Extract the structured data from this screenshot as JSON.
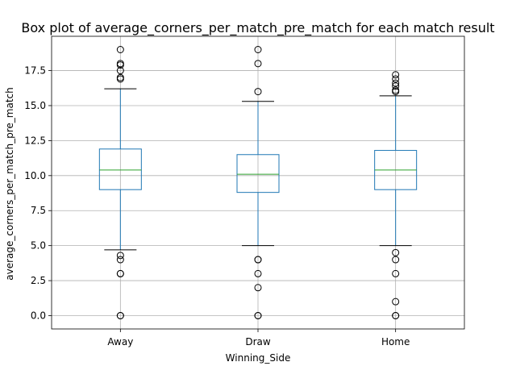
{
  "chart_data": {
    "type": "box",
    "title": "Box plot of average_corners_per_match_pre_match for each match result",
    "xlabel": "Winning_Side",
    "ylabel": "average_corners_per_match_pre_match",
    "categories": [
      "Away",
      "Draw",
      "Home"
    ],
    "ylim": [
      -0.95,
      19.95
    ],
    "yticks": [
      0.0,
      2.5,
      5.0,
      7.5,
      10.0,
      12.5,
      15.0,
      17.5
    ],
    "ytick_labels": [
      "0.0",
      "2.5",
      "5.0",
      "7.5",
      "10.0",
      "12.5",
      "15.0",
      "17.5"
    ],
    "grid": true,
    "boxes": [
      {
        "category": "Away",
        "whisker_low": 4.7,
        "q1": 9.0,
        "median": 10.4,
        "q3": 11.9,
        "whisker_high": 16.2,
        "outliers": [
          19.0,
          18.0,
          17.9,
          17.5,
          17.0,
          16.9,
          4.3,
          4.0,
          3.0,
          3.0,
          0.0,
          0.0
        ]
      },
      {
        "category": "Draw",
        "whisker_low": 5.0,
        "q1": 8.8,
        "median": 10.1,
        "q3": 11.5,
        "whisker_high": 15.3,
        "outliers": [
          19.0,
          18.0,
          16.0,
          4.0,
          4.0,
          3.0,
          2.0,
          0.0,
          0.0
        ]
      },
      {
        "category": "Home",
        "whisker_low": 5.0,
        "q1": 9.0,
        "median": 10.4,
        "q3": 11.8,
        "whisker_high": 15.7,
        "outliers": [
          17.2,
          16.9,
          16.6,
          16.4,
          16.1,
          16.0,
          4.5,
          4.0,
          3.0,
          1.0,
          0.0,
          0.0
        ]
      }
    ]
  },
  "style": {
    "box_color": "#1f77b4",
    "median_color": "#2ca02c",
    "whisker_cap_color": "#000000",
    "outlier_color": "#000000",
    "grid_color": "#b0b0b0"
  }
}
